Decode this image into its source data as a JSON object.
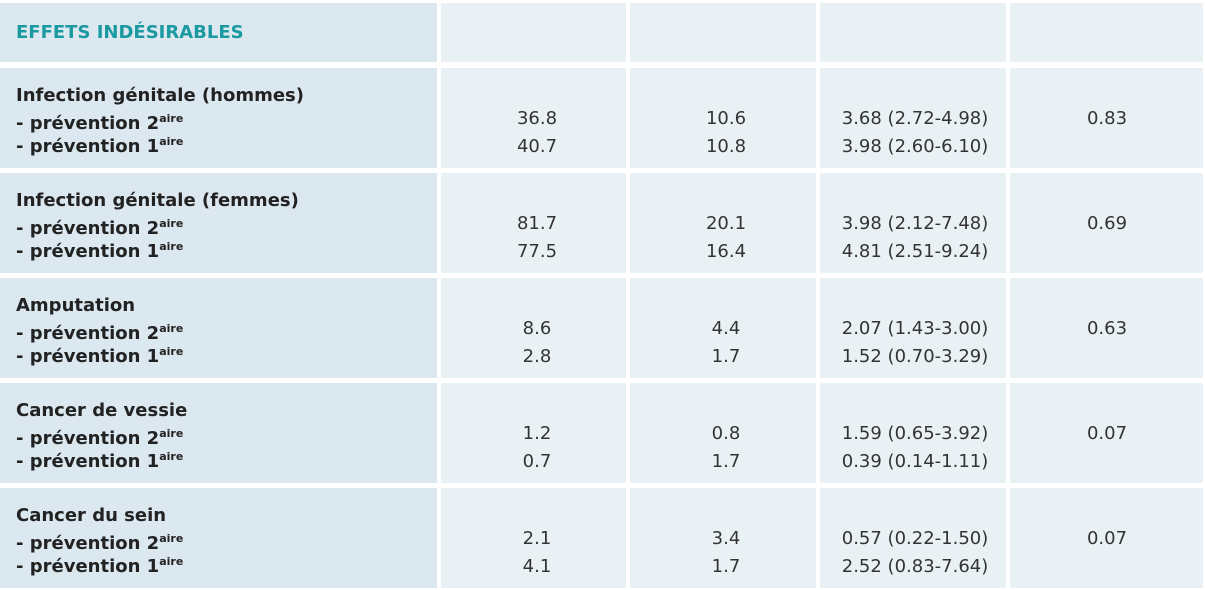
{
  "header": {
    "title": "EFFETS INDÉSIRABLES"
  },
  "table": {
    "rows": [
      {
        "label": "Infection génitale (hommes)",
        "sub": [
          {
            "text": "- prévention 2",
            "sup": "aire"
          },
          {
            "text": "- prévention 1",
            "sup": "aire"
          }
        ],
        "col1": [
          "36.8",
          "40.7"
        ],
        "col2": [
          "10.6",
          "10.8"
        ],
        "col3": [
          "3.68 (2.72-4.98)",
          "3.98 (2.60-6.10)"
        ],
        "col4": "0.83"
      },
      {
        "label": "Infection génitale (femmes)",
        "sub": [
          {
            "text": "- prévention 2",
            "sup": "aire"
          },
          {
            "text": "- prévention 1",
            "sup": "aire"
          }
        ],
        "col1": [
          "81.7",
          "77.5"
        ],
        "col2": [
          "20.1",
          "16.4"
        ],
        "col3": [
          "3.98 (2.12-7.48)",
          "4.81 (2.51-9.24)"
        ],
        "col4": "0.69"
      },
      {
        "label": "Amputation",
        "sub": [
          {
            "text": "- prévention 2",
            "sup": "aire"
          },
          {
            "text": "- prévention 1",
            "sup": "aire"
          }
        ],
        "col1": [
          "8.6",
          "2.8"
        ],
        "col2": [
          "4.4",
          "1.7"
        ],
        "col3": [
          "2.07 (1.43-3.00)",
          "1.52 (0.70-3.29)"
        ],
        "col4": "0.63"
      },
      {
        "label": "Cancer de vessie",
        "sub": [
          {
            "text": "- prévention 2",
            "sup": "aire"
          },
          {
            "text": "- prévention 1",
            "sup": "aire"
          }
        ],
        "col1": [
          "1.2",
          "0.7"
        ],
        "col2": [
          "0.8",
          "1.7"
        ],
        "col3": [
          "1.59 (0.65-3.92)",
          "0.39 (0.14-1.11)"
        ],
        "col4": "0.07"
      },
      {
        "label": "Cancer du sein",
        "sub": [
          {
            "text": "- prévention 2",
            "sup": "aire"
          },
          {
            "text": "- prévention 1",
            "sup": "aire"
          }
        ],
        "col1": [
          "2.1",
          "4.1"
        ],
        "col2": [
          "3.4",
          "1.7"
        ],
        "col3": [
          "0.57 (0.22-1.50)",
          "2.52 (0.83-7.64)"
        ],
        "col4": "0.07"
      }
    ]
  }
}
